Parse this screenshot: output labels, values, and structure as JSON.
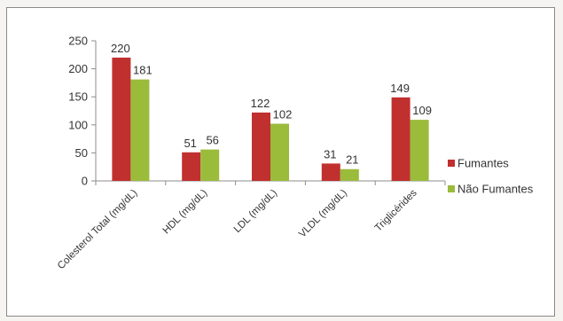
{
  "chart_data": {
    "type": "bar",
    "title": "",
    "xlabel": "",
    "ylabel": "",
    "categories": [
      "Colesterol Total (mg/dL)",
      "HDL (mg/dL)",
      "LDL (mg/dL)",
      "VLDL (mg/dL)",
      "Triglicérides"
    ],
    "series": [
      {
        "name": "Fumantes",
        "values": [
          220,
          51,
          122,
          31,
          149
        ],
        "color": "#c0302f"
      },
      {
        "name": "Não Fumantes",
        "values": [
          181,
          56,
          102,
          21,
          109
        ],
        "color": "#9bbb3b"
      }
    ],
    "ylim": [
      0,
      250
    ],
    "yticks": [
      0,
      50,
      100,
      150,
      200,
      250
    ],
    "grid": false,
    "legend_position": "right",
    "data_labels": true
  }
}
